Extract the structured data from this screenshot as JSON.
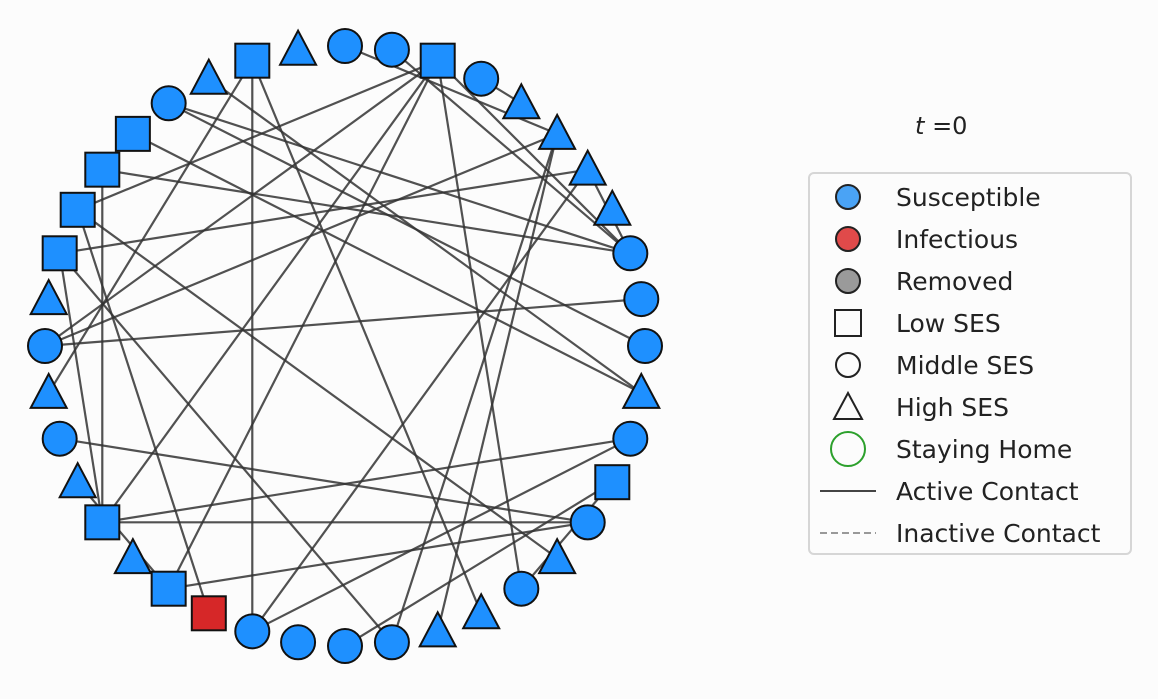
{
  "time": {
    "symbol": "t",
    "value": "=0"
  },
  "colors": {
    "susceptible": "#1e90ff",
    "infectious": "#d62728",
    "removed": "#7f7f7f",
    "staying_home_ring": "#2ca02c",
    "edge_active": "#333333",
    "edge_inactive": "#999999"
  },
  "legend": {
    "items": [
      {
        "key": "susceptible",
        "label": "Susceptible",
        "symbol": "circle-fill",
        "color": "#4aa3f5"
      },
      {
        "key": "infectious",
        "label": "Infectious",
        "symbol": "circle-fill",
        "color": "#e04a4a"
      },
      {
        "key": "removed",
        "label": "Removed",
        "symbol": "circle-fill",
        "color": "#9a9a9a"
      },
      {
        "key": "low-ses",
        "label": "Low SES",
        "symbol": "square-outline"
      },
      {
        "key": "middle-ses",
        "label": "Middle SES",
        "symbol": "circle-outline"
      },
      {
        "key": "high-ses",
        "label": "High SES",
        "symbol": "triangle-outline"
      },
      {
        "key": "staying-home",
        "label": "Staying Home",
        "symbol": "ring-green"
      },
      {
        "key": "active-contact",
        "label": "Active Contact",
        "symbol": "line-solid"
      },
      {
        "key": "inactive-contact",
        "label": "Inactive Contact",
        "symbol": "line-dashed"
      }
    ]
  },
  "network": {
    "nodes": [
      {
        "shape": "circle",
        "state": "susceptible"
      },
      {
        "shape": "circle",
        "state": "susceptible"
      },
      {
        "shape": "square",
        "state": "susceptible"
      },
      {
        "shape": "circle",
        "state": "susceptible"
      },
      {
        "shape": "triangle",
        "state": "susceptible"
      },
      {
        "shape": "triangle",
        "state": "susceptible"
      },
      {
        "shape": "triangle",
        "state": "susceptible"
      },
      {
        "shape": "triangle",
        "state": "susceptible"
      },
      {
        "shape": "circle",
        "state": "susceptible"
      },
      {
        "shape": "circle",
        "state": "susceptible"
      },
      {
        "shape": "circle",
        "state": "susceptible"
      },
      {
        "shape": "triangle",
        "state": "susceptible"
      },
      {
        "shape": "circle",
        "state": "susceptible"
      },
      {
        "shape": "square",
        "state": "susceptible"
      },
      {
        "shape": "circle",
        "state": "susceptible"
      },
      {
        "shape": "triangle",
        "state": "susceptible"
      },
      {
        "shape": "circle",
        "state": "susceptible"
      },
      {
        "shape": "triangle",
        "state": "susceptible"
      },
      {
        "shape": "triangle",
        "state": "susceptible"
      },
      {
        "shape": "circle",
        "state": "susceptible"
      },
      {
        "shape": "circle",
        "state": "susceptible"
      },
      {
        "shape": "circle",
        "state": "susceptible"
      },
      {
        "shape": "circle",
        "state": "susceptible"
      },
      {
        "shape": "square",
        "state": "infectious"
      },
      {
        "shape": "square",
        "state": "susceptible"
      },
      {
        "shape": "triangle",
        "state": "susceptible"
      },
      {
        "shape": "square",
        "state": "susceptible"
      },
      {
        "shape": "triangle",
        "state": "susceptible"
      },
      {
        "shape": "circle",
        "state": "susceptible"
      },
      {
        "shape": "triangle",
        "state": "susceptible"
      },
      {
        "shape": "circle",
        "state": "susceptible"
      },
      {
        "shape": "triangle",
        "state": "susceptible"
      },
      {
        "shape": "square",
        "state": "susceptible"
      },
      {
        "shape": "square",
        "state": "susceptible"
      },
      {
        "shape": "square",
        "state": "susceptible"
      },
      {
        "shape": "square",
        "state": "susceptible"
      },
      {
        "shape": "circle",
        "state": "susceptible"
      },
      {
        "shape": "triangle",
        "state": "susceptible"
      },
      {
        "shape": "square",
        "state": "susceptible"
      },
      {
        "shape": "triangle",
        "state": "susceptible"
      }
    ],
    "edges": [
      [
        2,
        8
      ],
      [
        2,
        24
      ],
      [
        2,
        26
      ],
      [
        2,
        33
      ],
      [
        2,
        30
      ],
      [
        2,
        16
      ],
      [
        3,
        4
      ],
      [
        5,
        0
      ],
      [
        5,
        18
      ],
      [
        5,
        19
      ],
      [
        5,
        30
      ],
      [
        6,
        22
      ],
      [
        6,
        32
      ],
      [
        8,
        36
      ],
      [
        8,
        34
      ],
      [
        8,
        1
      ],
      [
        8,
        6
      ],
      [
        9,
        30
      ],
      [
        10,
        36
      ],
      [
        11,
        35
      ],
      [
        11,
        37
      ],
      [
        12,
        22
      ],
      [
        12,
        26
      ],
      [
        13,
        16
      ],
      [
        13,
        20
      ],
      [
        14,
        24
      ],
      [
        14,
        26
      ],
      [
        14,
        28
      ],
      [
        15,
        33
      ],
      [
        17,
        38
      ],
      [
        19,
        32
      ],
      [
        22,
        38
      ],
      [
        23,
        33
      ],
      [
        24,
        27
      ],
      [
        26,
        34
      ],
      [
        26,
        32
      ],
      [
        29,
        38
      ]
    ]
  }
}
